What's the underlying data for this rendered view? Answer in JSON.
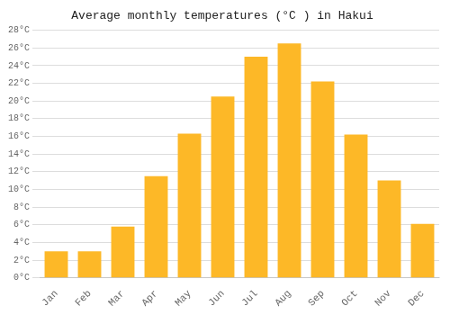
{
  "chart_data": {
    "type": "bar",
    "title": "Average monthly temperatures (°C ) in Hakui",
    "categories": [
      "Jan",
      "Feb",
      "Mar",
      "Apr",
      "May",
      "Jun",
      "Jul",
      "Aug",
      "Sep",
      "Oct",
      "Nov",
      "Dec"
    ],
    "values": [
      3.0,
      3.0,
      5.8,
      11.5,
      16.3,
      20.5,
      25.0,
      26.5,
      22.2,
      16.2,
      11.0,
      6.1
    ],
    "color": "#FDB827",
    "ylim": [
      0,
      28
    ],
    "yticks": [
      {
        "value": 0,
        "label": "0°C"
      },
      {
        "value": 2,
        "label": "2°C"
      },
      {
        "value": 4,
        "label": "4°C"
      },
      {
        "value": 6,
        "label": "6°C"
      },
      {
        "value": 8,
        "label": "8°C"
      },
      {
        "value": 10,
        "label": "10°C"
      },
      {
        "value": 12,
        "label": "12°C"
      },
      {
        "value": 14,
        "label": "14°C"
      },
      {
        "value": 16,
        "label": "16°C"
      },
      {
        "value": 18,
        "label": "18°C"
      },
      {
        "value": 20,
        "label": "20°C"
      },
      {
        "value": 22,
        "label": "22°C"
      },
      {
        "value": 24,
        "label": "24°C"
      },
      {
        "value": 26,
        "label": "26°C"
      },
      {
        "value": 28,
        "label": "28°C"
      }
    ],
    "grid": true
  }
}
